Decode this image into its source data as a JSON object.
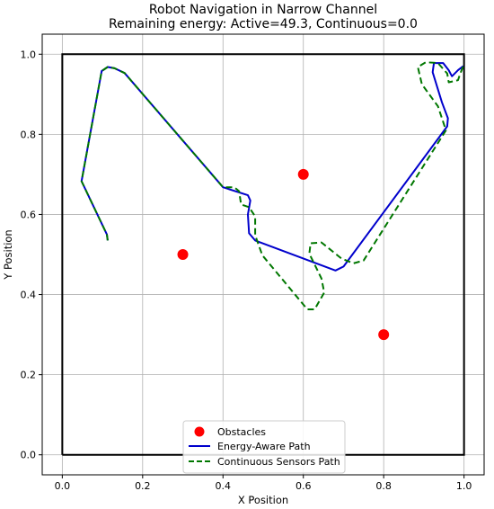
{
  "chart_data": {
    "type": "line",
    "title": "Robot Navigation in Narrow Channel",
    "subtitle": "Remaining energy: Active=49.3, Continuous=0.0",
    "xlabel": "X Position",
    "ylabel": "Y Position",
    "xlim": [
      -0.05,
      1.05
    ],
    "ylim": [
      -0.05,
      1.05
    ],
    "xticks": [
      "0.0",
      "0.2",
      "0.4",
      "0.6",
      "0.8",
      "1.0"
    ],
    "yticks": [
      "0.0",
      "0.2",
      "0.4",
      "0.6",
      "0.8",
      "1.0"
    ],
    "grid": true,
    "legend_position": "bottom-center",
    "boundary": [
      [
        0,
        0
      ],
      [
        1,
        0
      ],
      [
        1,
        1
      ],
      [
        0,
        1
      ],
      [
        0,
        0
      ]
    ],
    "obstacles": {
      "name": "Obstacles",
      "color": "#ff0000",
      "points": [
        [
          0.3,
          0.5
        ],
        [
          0.6,
          0.7
        ],
        [
          0.8,
          0.3
        ]
      ]
    },
    "series": [
      {
        "name": "Energy-Aware Path",
        "color": "#0000cc",
        "style": "solid",
        "points": [
          [
            0.113,
            0.535
          ],
          [
            0.111,
            0.55
          ],
          [
            0.048,
            0.683
          ],
          [
            0.098,
            0.958
          ],
          [
            0.113,
            0.968
          ],
          [
            0.13,
            0.965
          ],
          [
            0.155,
            0.953
          ],
          [
            0.4,
            0.668
          ],
          [
            0.462,
            0.648
          ],
          [
            0.468,
            0.635
          ],
          [
            0.462,
            0.6
          ],
          [
            0.465,
            0.553
          ],
          [
            0.48,
            0.535
          ],
          [
            0.68,
            0.46
          ],
          [
            0.7,
            0.47
          ],
          [
            0.958,
            0.82
          ],
          [
            0.96,
            0.84
          ],
          [
            0.945,
            0.88
          ],
          [
            0.922,
            0.955
          ],
          [
            0.925,
            0.978
          ],
          [
            0.948,
            0.978
          ],
          [
            0.962,
            0.96
          ],
          [
            0.97,
            0.945
          ],
          [
            0.985,
            0.96
          ],
          [
            0.998,
            0.97
          ]
        ]
      },
      {
        "name": "Continuous Sensors Path",
        "color": "#007700",
        "style": "dashed",
        "points": [
          [
            0.113,
            0.535
          ],
          [
            0.111,
            0.55
          ],
          [
            0.048,
            0.683
          ],
          [
            0.098,
            0.958
          ],
          [
            0.113,
            0.968
          ],
          [
            0.13,
            0.965
          ],
          [
            0.155,
            0.953
          ],
          [
            0.4,
            0.668
          ],
          [
            0.428,
            0.668
          ],
          [
            0.44,
            0.658
          ],
          [
            0.445,
            0.625
          ],
          [
            0.465,
            0.618
          ],
          [
            0.48,
            0.595
          ],
          [
            0.48,
            0.548
          ],
          [
            0.498,
            0.498
          ],
          [
            0.61,
            0.363
          ],
          [
            0.628,
            0.363
          ],
          [
            0.652,
            0.405
          ],
          [
            0.645,
            0.44
          ],
          [
            0.615,
            0.502
          ],
          [
            0.618,
            0.528
          ],
          [
            0.645,
            0.53
          ],
          [
            0.695,
            0.49
          ],
          [
            0.725,
            0.478
          ],
          [
            0.75,
            0.485
          ],
          [
            0.955,
            0.81
          ],
          [
            0.935,
            0.87
          ],
          [
            0.895,
            0.925
          ],
          [
            0.885,
            0.968
          ],
          [
            0.905,
            0.98
          ],
          [
            0.935,
            0.978
          ],
          [
            0.958,
            0.952
          ],
          [
            0.962,
            0.93
          ],
          [
            0.985,
            0.935
          ],
          [
            0.99,
            0.95
          ],
          [
            0.998,
            0.97
          ]
        ]
      }
    ]
  }
}
